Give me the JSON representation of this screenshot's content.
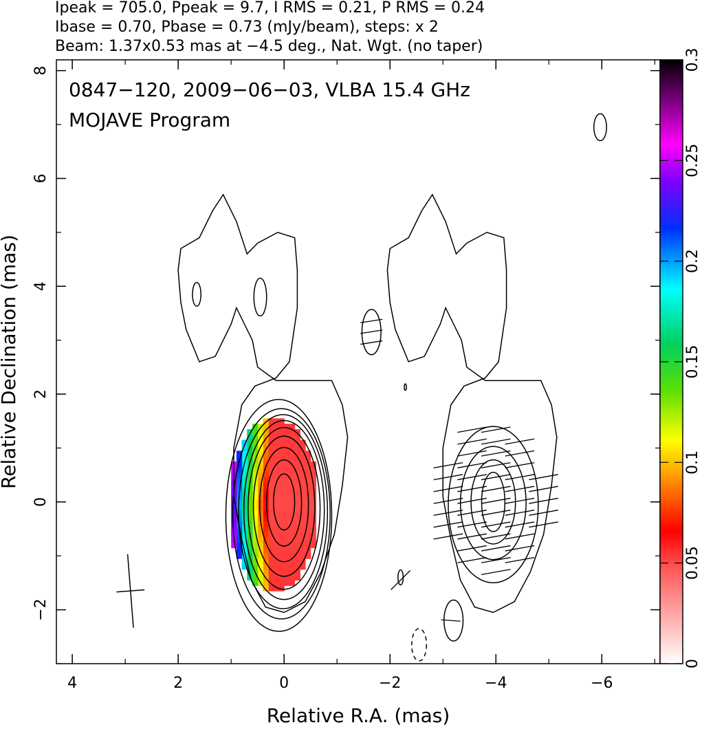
{
  "header": {
    "line1": "Ipeak = 705.0, Ppeak = 9.7, I RMS = 0.21, P RMS = 0.24",
    "line2": "Ibase = 0.70, Pbase = 0.73 (mJy/beam), steps: x 2",
    "line3": "Beam: 1.37x0.53 mas at −4.5 deg., Nat. Wgt. (no taper)"
  },
  "annotation": {
    "line1": "0847−120, 2009−06−03, VLBA 15.4 GHz",
    "line2": "MOJAVE Program"
  },
  "chart_data": {
    "type": "heatmap",
    "title": "0847−120, 2009−06−03, VLBA 15.4 GHz",
    "subtitle": "MOJAVE Program",
    "xlabel": "Relative R.A. (mas)",
    "ylabel": "Relative Declination (mas)",
    "xlim": [
      4.3,
      -7.1
    ],
    "ylim": [
      -3.0,
      8.2
    ],
    "x_ticks": [
      4,
      2,
      0,
      -2,
      -4,
      -6
    ],
    "x_tick_labels": [
      "4",
      "2",
      "0",
      "−2",
      "−4",
      "−6"
    ],
    "y_ticks": [
      -2,
      0,
      2,
      4,
      6,
      8
    ],
    "y_tick_labels": [
      "−2",
      "0",
      "2",
      "4",
      "6",
      "8"
    ],
    "colorbar": {
      "range": [
        0,
        0.3
      ],
      "ticks": [
        0,
        0.05,
        0.1,
        0.15,
        0.2,
        0.25,
        0.3
      ],
      "tick_labels": [
        "0",
        "0.05",
        "0.1",
        "0.15",
        "0.2",
        "0.25",
        "0.3"
      ],
      "colors": [
        "#ffffff",
        "#ff9a9a",
        "#ff0000",
        "#ff9000",
        "#ffff00",
        "#00e000",
        "#00ffff",
        "#0000ff",
        "#ff00ff",
        "#800080",
        "#000000"
      ]
    },
    "panels": [
      {
        "name": "total-intensity",
        "center_ra": 0.0
      },
      {
        "name": "polarization",
        "center_ra": -3.95
      }
    ],
    "contours": {
      "base_mJy_per_beam": 0.7,
      "step_factor": 2,
      "core_levels": [
        {
          "rx": 1.0,
          "ry": 2.15,
          "dx": 0.1,
          "dy": -0.25
        },
        {
          "rx": 0.92,
          "ry": 1.95,
          "dx": 0.05,
          "dy": -0.22
        },
        {
          "rx": 0.84,
          "ry": 1.8,
          "dx": 0.02,
          "dy": -0.18
        },
        {
          "rx": 0.76,
          "ry": 1.66,
          "dx": 0.0,
          "dy": -0.15
        },
        {
          "rx": 0.68,
          "ry": 1.5,
          "dx": 0.0,
          "dy": -0.12
        },
        {
          "rx": 0.58,
          "ry": 1.3,
          "dx": 0.0,
          "dy": -0.08
        },
        {
          "rx": 0.46,
          "ry": 1.06,
          "dx": 0.0,
          "dy": -0.05
        },
        {
          "rx": 0.33,
          "ry": 0.8,
          "dx": 0.0,
          "dy": -0.02
        },
        {
          "rx": 0.2,
          "ry": 0.52,
          "dx": 0.0,
          "dy": 0.0
        }
      ],
      "pol_levels": [
        {
          "rx": 0.85,
          "ry": 1.45,
          "dx": 0.0,
          "dy": -0.05
        },
        {
          "rx": 0.62,
          "ry": 1.05,
          "dx": 0.0,
          "dy": -0.02
        },
        {
          "rx": 0.42,
          "ry": 0.78,
          "dx": 0.0,
          "dy": 0.0
        },
        {
          "rx": 0.22,
          "ry": 0.55,
          "dx": 0.0,
          "dy": 0.0
        }
      ],
      "outer_envelope": [
        [
          -0.9,
          2.25
        ],
        [
          -1.1,
          1.8
        ],
        [
          -1.2,
          1.2
        ],
        [
          -1.1,
          0.3
        ],
        [
          -0.95,
          -0.6
        ],
        [
          -0.7,
          -1.3
        ],
        [
          -0.4,
          -1.85
        ],
        [
          0.0,
          -2.05
        ],
        [
          0.35,
          -1.95
        ],
        [
          0.62,
          -1.45
        ],
        [
          0.8,
          -0.7
        ],
        [
          0.95,
          0.1
        ],
        [
          0.95,
          1.0
        ],
        [
          0.8,
          1.8
        ],
        [
          0.55,
          2.15
        ],
        [
          0.15,
          2.3
        ],
        [
          -0.1,
          2.6
        ],
        [
          -0.25,
          3.6
        ],
        [
          -0.25,
          4.3
        ],
        [
          -0.2,
          4.9
        ],
        [
          0.12,
          5.0
        ],
        [
          0.5,
          4.8
        ],
        [
          0.7,
          4.6
        ],
        [
          0.9,
          5.2
        ],
        [
          1.15,
          5.7
        ],
        [
          1.35,
          5.4
        ],
        [
          1.6,
          4.9
        ],
        [
          1.95,
          4.7
        ],
        [
          2.0,
          4.3
        ],
        [
          1.95,
          3.7
        ],
        [
          1.85,
          3.2
        ],
        [
          1.6,
          2.6
        ],
        [
          1.3,
          2.7
        ],
        [
          1.0,
          3.3
        ],
        [
          0.9,
          3.6
        ],
        [
          0.6,
          3.0
        ],
        [
          0.5,
          2.5
        ],
        [
          0.15,
          2.25
        ],
        [
          -0.9,
          2.25
        ]
      ],
      "islands": [
        {
          "name": "jet-knot-inner",
          "ra": 0.45,
          "dec": 3.8,
          "rx": 0.12,
          "ry": 0.35
        },
        {
          "name": "jet-knot-outer",
          "ra": 1.65,
          "dec": 3.85,
          "rx": 0.08,
          "ry": 0.22
        },
        {
          "name": "island-ne",
          "ra": -5.97,
          "dec": 6.95,
          "rx": 0.12,
          "ry": 0.25
        },
        {
          "name": "pol-island-upper",
          "ra": -1.65,
          "dec": 3.15,
          "rx": 0.18,
          "ry": 0.42
        },
        {
          "name": "pol-island-small",
          "ra": -2.29,
          "dec": 2.13,
          "rx": 0.02,
          "ry": 0.06
        },
        {
          "name": "pol-island-lower",
          "ra": -2.2,
          "dec": -1.4,
          "rx": 0.05,
          "ry": 0.14
        },
        {
          "name": "pol-island-bottom",
          "ra": -3.2,
          "dec": -2.2,
          "rx": 0.18,
          "ry": 0.38
        }
      ],
      "negative_islands": [
        {
          "name": "neg-island",
          "ra": -2.55,
          "dec": -2.65,
          "rx": 0.14,
          "ry": 0.3
        }
      ]
    },
    "fractional_polarization": {
      "ra_range": [
        -0.55,
        1.05
      ],
      "dec_range": [
        -1.6,
        1.55
      ]
    },
    "evpa_region": {
      "ra_range": [
        -4.9,
        -2.9
      ],
      "dec_range": [
        -1.3,
        1.45
      ],
      "angle_deg_from_east": 10
    },
    "beam": {
      "major_mas": 1.37,
      "minor_mas": 0.53,
      "pa_deg": -4.5,
      "ra": 2.9,
      "dec": -1.65
    }
  }
}
